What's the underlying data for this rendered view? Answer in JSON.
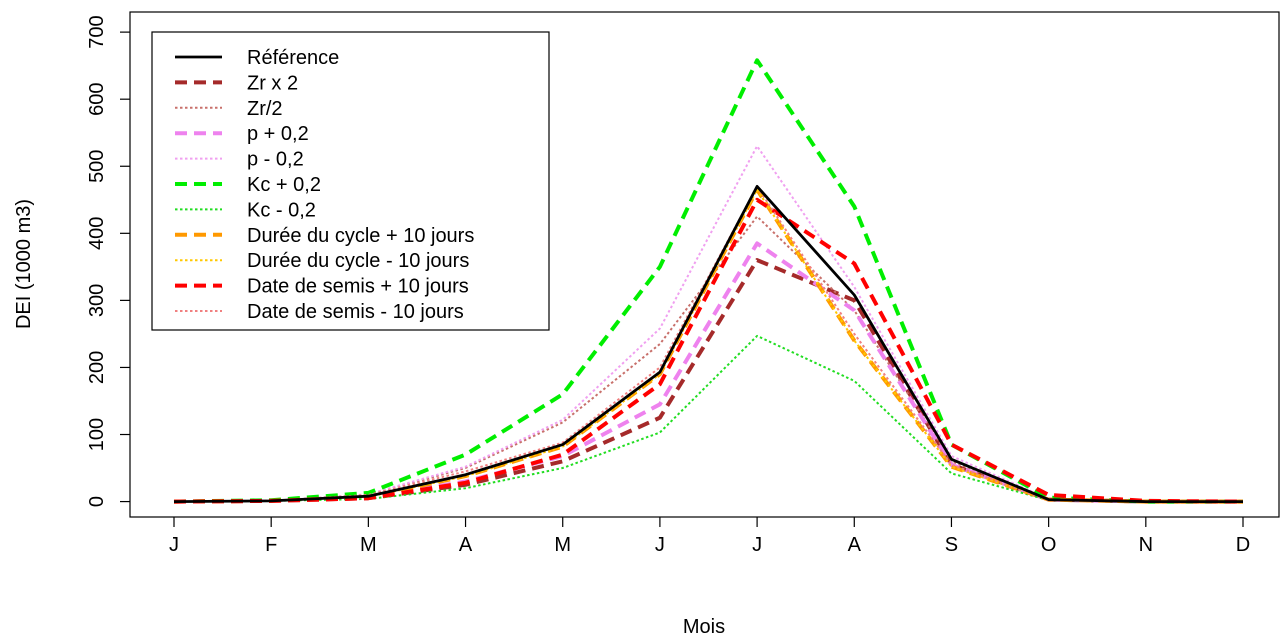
{
  "chart_data": {
    "type": "line",
    "xlabel": "Mois",
    "ylabel": "DEI (1000 m3)",
    "categories": [
      "J",
      "F",
      "M",
      "A",
      "M",
      "J",
      "J",
      "A",
      "S",
      "O",
      "N",
      "D"
    ],
    "yticks": [
      "0",
      "100",
      "200",
      "300",
      "400",
      "500",
      "600",
      "700"
    ],
    "ylim": [
      -23,
      730
    ],
    "legend_position": "top-left",
    "series": [
      {
        "name": "Référence",
        "color": "#000000",
        "style": "solid",
        "values": [
          0,
          1,
          8,
          40,
          85,
          193,
          470,
          308,
          63,
          3,
          0,
          0
        ]
      },
      {
        "name": "Zr x 2",
        "color": "#a52a2a",
        "style": "dashed",
        "values": [
          0,
          1,
          5,
          25,
          60,
          125,
          360,
          300,
          55,
          3,
          0,
          0
        ]
      },
      {
        "name": "Zr/2",
        "color": "#c8706b",
        "style": "dotted",
        "values": [
          0,
          1,
          10,
          50,
          118,
          235,
          425,
          285,
          60,
          4,
          0,
          0
        ]
      },
      {
        "name": "p + 0,2",
        "color": "#ee82ee",
        "style": "dashed",
        "values": [
          0,
          1,
          6,
          30,
          68,
          145,
          385,
          285,
          55,
          3,
          0,
          0
        ]
      },
      {
        "name": "p - 0,2",
        "color": "#f0a0f0",
        "style": "dotted",
        "values": [
          0,
          1,
          11,
          52,
          122,
          258,
          530,
          320,
          68,
          4,
          0,
          0
        ]
      },
      {
        "name": "Kc + 0,2",
        "color": "#00ee00",
        "style": "dashed",
        "values": [
          0,
          2,
          13,
          70,
          160,
          350,
          658,
          440,
          85,
          6,
          0,
          0
        ]
      },
      {
        "name": "Kc - 0,2",
        "color": "#22dd22",
        "style": "dotted",
        "values": [
          0,
          1,
          4,
          20,
          50,
          103,
          247,
          180,
          42,
          2,
          0,
          0
        ]
      },
      {
        "name": "Durée du cycle + 10 jours",
        "color": "#ff9900",
        "style": "dashed",
        "values": [
          0,
          1,
          7,
          38,
          82,
          190,
          465,
          240,
          52,
          3,
          0,
          0
        ]
      },
      {
        "name": "Durée du cycle - 10 jours",
        "color": "#ffc800",
        "style": "dotted",
        "values": [
          0,
          1,
          7,
          38,
          82,
          190,
          465,
          240,
          52,
          3,
          0,
          0
        ]
      },
      {
        "name": "Date de semis + 10 jours",
        "color": "#ff0000",
        "style": "dashed",
        "values": [
          0,
          1,
          5,
          28,
          70,
          175,
          450,
          355,
          85,
          10,
          1,
          0
        ]
      },
      {
        "name": "Date de semis - 10 jours",
        "color": "#f08080",
        "style": "dotted",
        "values": [
          0,
          1,
          10,
          45,
          88,
          200,
          470,
          250,
          55,
          2,
          0,
          0
        ]
      }
    ]
  }
}
